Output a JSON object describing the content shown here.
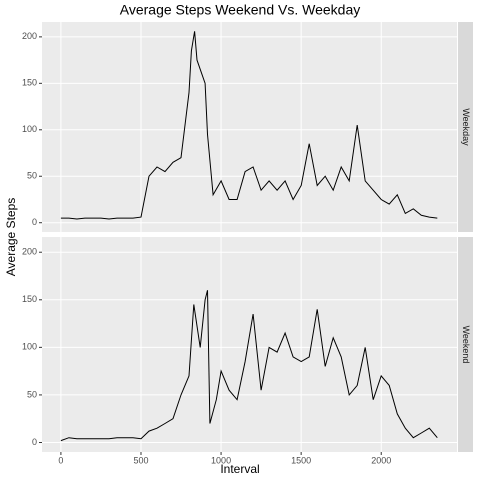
{
  "chart_data": {
    "type": "line",
    "title": "Average Steps Weekend Vs. Weekday",
    "x_label": "Interval",
    "y_label": "Average Steps",
    "xlim": [
      -118,
      2473
    ],
    "xticks": [
      0,
      500,
      1000,
      1500,
      2000
    ],
    "ylim": [
      -10,
      216
    ],
    "yticks": [
      0,
      50,
      100,
      150,
      200
    ],
    "grid": true,
    "color": "#000000",
    "panels": [
      {
        "name": "Weekday",
        "x": [
          0,
          50,
          100,
          150,
          200,
          250,
          300,
          350,
          400,
          450,
          500,
          550,
          600,
          650,
          700,
          750,
          800,
          815,
          835,
          850,
          900,
          915,
          950,
          1000,
          1050,
          1100,
          1150,
          1200,
          1250,
          1300,
          1350,
          1400,
          1450,
          1500,
          1550,
          1600,
          1650,
          1700,
          1750,
          1800,
          1850,
          1900,
          1950,
          2000,
          2050,
          2100,
          2150,
          2200,
          2250,
          2300,
          2350
        ],
        "values": [
          5,
          5,
          4,
          5,
          5,
          5,
          4,
          5,
          5,
          5,
          6,
          50,
          60,
          55,
          65,
          70,
          140,
          185,
          206,
          175,
          150,
          95,
          30,
          45,
          25,
          25,
          55,
          60,
          35,
          45,
          35,
          45,
          25,
          40,
          85,
          40,
          50,
          35,
          60,
          45,
          105,
          45,
          35,
          25,
          20,
          30,
          10,
          15,
          8,
          6,
          5
        ]
      },
      {
        "name": "Weekend",
        "x": [
          0,
          50,
          100,
          150,
          200,
          250,
          300,
          350,
          400,
          450,
          500,
          550,
          600,
          650,
          700,
          750,
          800,
          830,
          870,
          900,
          915,
          930,
          970,
          1000,
          1050,
          1100,
          1150,
          1200,
          1250,
          1300,
          1350,
          1400,
          1450,
          1500,
          1550,
          1600,
          1650,
          1700,
          1750,
          1800,
          1850,
          1900,
          1950,
          2000,
          2050,
          2100,
          2150,
          2200,
          2250,
          2300,
          2350
        ],
        "values": [
          2,
          5,
          4,
          4,
          4,
          4,
          4,
          5,
          5,
          5,
          4,
          12,
          15,
          20,
          25,
          50,
          70,
          145,
          100,
          150,
          160,
          20,
          45,
          75,
          55,
          45,
          85,
          135,
          55,
          100,
          95,
          115,
          90,
          85,
          90,
          140,
          80,
          110,
          90,
          50,
          60,
          100,
          45,
          70,
          60,
          30,
          15,
          5,
          10,
          15,
          5
        ]
      }
    ]
  }
}
